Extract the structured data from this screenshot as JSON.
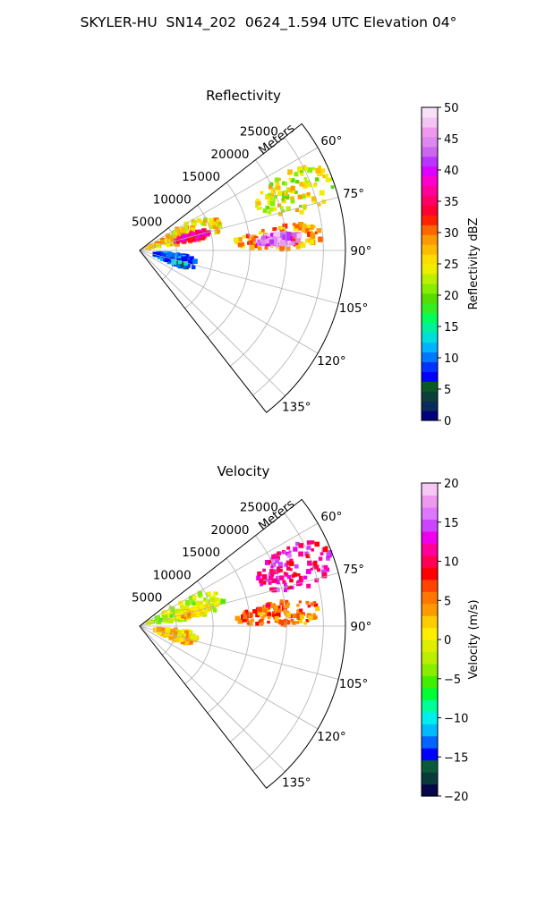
{
  "figure": {
    "suptitle": "SKYLER-HU  SN14_202  0624_1.594 UTC Elevation 04°"
  },
  "chart_data": [
    {
      "type": "polar-sector",
      "title": "Reflectivity",
      "radial_label": "Meters",
      "radial_ticks": [
        5000,
        10000,
        15000,
        20000,
        25000
      ],
      "r_max_m": 28000,
      "theta_ticks_deg": [
        60,
        75,
        90,
        105,
        120,
        135
      ],
      "theta_range_deg": [
        52,
        142
      ],
      "grid": true,
      "colorbar": {
        "label": "Reflectivity dBZ",
        "range": [
          0,
          50
        ],
        "ticks": [
          0,
          5,
          10,
          15,
          20,
          25,
          30,
          35,
          40,
          45,
          50
        ],
        "colormap": "pyart_NWSRef"
      },
      "echo_regions": [
        {
          "az": [
            62,
            77
          ],
          "r": [
            17000,
            28000
          ],
          "value": 24
        },
        {
          "az": [
            80,
            90
          ],
          "r": [
            13000,
            25000
          ],
          "value": 28
        },
        {
          "az": [
            83,
            88
          ],
          "r": [
            16000,
            22000
          ],
          "value": 44
        },
        {
          "az": [
            60,
            82
          ],
          "r": [
            1000,
            12000
          ],
          "value": 26
        },
        {
          "az": [
            72,
            79
          ],
          "r": [
            5000,
            10000
          ],
          "value": 36
        },
        {
          "az": [
            95,
            112
          ],
          "r": [
            2000,
            8000
          ],
          "value": 10
        }
      ]
    },
    {
      "type": "polar-sector",
      "title": "Velocity",
      "radial_label": "Meters",
      "radial_ticks": [
        5000,
        10000,
        15000,
        20000,
        25000
      ],
      "r_max_m": 28000,
      "theta_ticks_deg": [
        60,
        75,
        90,
        105,
        120,
        135
      ],
      "theta_range_deg": [
        52,
        142
      ],
      "grid": true,
      "colorbar": {
        "label": "Velocity (m/s)",
        "range": [
          -20,
          20
        ],
        "ticks": [
          -20,
          -15,
          -10,
          -5,
          0,
          5,
          10,
          15,
          20
        ],
        "colormap": "pyart_BuDRd18"
      },
      "echo_regions": [
        {
          "az": [
            62,
            77
          ],
          "r": [
            17000,
            28000
          ],
          "value": 12
        },
        {
          "az": [
            80,
            90
          ],
          "r": [
            13000,
            25000
          ],
          "value": 6
        },
        {
          "az": [
            60,
            82
          ],
          "r": [
            1000,
            12000
          ],
          "value": -2
        },
        {
          "az": [
            72,
            79
          ],
          "r": [
            5000,
            10000
          ],
          "value": 2
        },
        {
          "az": [
            95,
            112
          ],
          "r": [
            2000,
            8000
          ],
          "value": 2
        }
      ]
    }
  ]
}
